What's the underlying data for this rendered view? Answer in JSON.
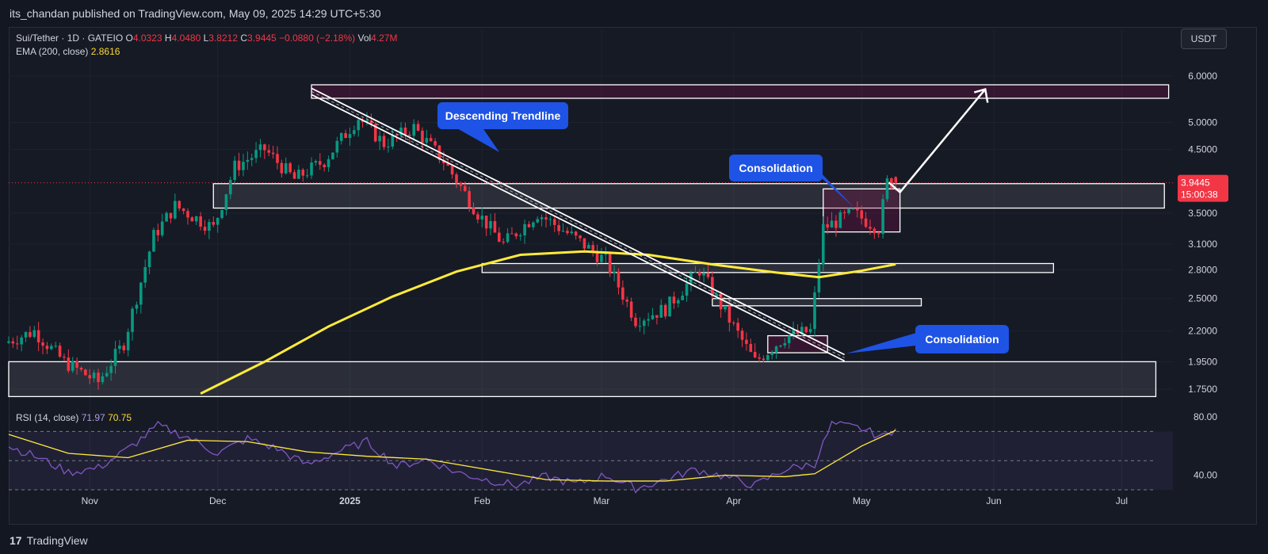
{
  "header": {
    "publisher": "its_chandan published on TradingView.com, May 09, 2025 14:29 UTC+5:30"
  },
  "legend": {
    "symbol": "Sui/Tether · 1D · GATEIO",
    "open_label": "O",
    "open": "4.0323",
    "high_label": "H",
    "high": "4.0480",
    "low_label": "L",
    "low": "3.8212",
    "close_label": "C",
    "close": "3.9445",
    "change": "−0.0880 (−2.18%)",
    "vol_label": "Vol",
    "vol": "4.27M",
    "ema_label": "EMA (200, close)",
    "ema": "2.8616",
    "rsi_label": "RSI (14, close)",
    "rsi": "71.97",
    "rsi_ma": "70.75"
  },
  "currency_button": "USDT",
  "price_tag": {
    "price": "3.9445",
    "countdown": "15:00:38"
  },
  "annotations": {
    "descending": "Descending Trendline",
    "consolidation_top": "Consolidation",
    "consolidation_bottom": "Consolidation"
  },
  "footer": {
    "brand": "TradingView"
  },
  "colors": {
    "up": "#089981",
    "down": "#f23645",
    "ema": "#ffeb3b",
    "rsi": "#7e57c2",
    "rsi_ma": "#ffeb3b",
    "annotation": "#1e53e5"
  },
  "chart_data": {
    "type": "candlestick",
    "y_scale": "log",
    "y_ticks": [
      "6.0000",
      "5.0000",
      "4.5000",
      "3.5000",
      "3.1000",
      "2.8000",
      "2.5000",
      "2.2000",
      "1.9500",
      "1.7500"
    ],
    "y_tick_values": [
      6.0,
      5.0,
      4.5,
      3.5,
      3.1,
      2.8,
      2.5,
      2.2,
      1.95,
      1.75
    ],
    "x_ticks": [
      "Nov",
      "Dec",
      "2025",
      "Feb",
      "Mar",
      "Apr",
      "May",
      "Jun",
      "Jul"
    ],
    "x_tick_dates": [
      "2024-11-01",
      "2024-12-01",
      "2025-01-01",
      "2025-02-01",
      "2025-03-01",
      "2025-04-01",
      "2025-05-01",
      "2025-06-01",
      "2025-07-01"
    ],
    "x_range": [
      "2024-10-13",
      "2025-07-13"
    ],
    "last_candle": {
      "date": "2025-05-09",
      "open": 4.0323,
      "high": 4.048,
      "low": 3.8212,
      "close": 3.9445
    },
    "ema200": [
      [
        "2024-11-27",
        1.72
      ],
      [
        "2024-12-12",
        1.95
      ],
      [
        "2024-12-27",
        2.24
      ],
      [
        "2025-01-11",
        2.52
      ],
      [
        "2025-01-26",
        2.78
      ],
      [
        "2025-02-10",
        2.97
      ],
      [
        "2025-02-25",
        3.01
      ],
      [
        "2025-03-12",
        2.97
      ],
      [
        "2025-03-27",
        2.86
      ],
      [
        "2025-04-11",
        2.77
      ],
      [
        "2025-04-21",
        2.72
      ],
      [
        "2025-05-01",
        2.79
      ],
      [
        "2025-05-09",
        2.8616
      ]
    ],
    "zones": [
      {
        "from": "2024-12-23",
        "to": "2025-07-12",
        "low": 5.5,
        "high": 5.8
      },
      {
        "from": "2024-11-30",
        "to": "2025-07-11",
        "low": 3.57,
        "high": 3.93
      },
      {
        "from": "2025-02-01",
        "to": "2025-06-15",
        "low": 2.77,
        "high": 2.87
      },
      {
        "from": "2025-03-27",
        "to": "2025-05-15",
        "low": 2.43,
        "high": 2.5
      },
      {
        "from": "2024-10-13",
        "to": "2025-07-09",
        "low": 1.7,
        "high": 1.95
      },
      {
        "from": "2025-04-22",
        "to": "2025-05-10",
        "low": 3.25,
        "high": 3.85
      },
      {
        "from": "2025-04-09",
        "to": "2025-04-23",
        "low": 2.02,
        "high": 2.16
      }
    ],
    "trendline": {
      "from": [
        "2024-12-23",
        5.65
      ],
      "to": [
        "2025-04-27",
        1.98
      ]
    },
    "projection_arrow": {
      "from": [
        "2025-05-10",
        3.8
      ],
      "to": [
        "2025-05-30",
        5.7
      ]
    },
    "rsi": {
      "y_ticks": [
        "80.00",
        "40.00"
      ],
      "y_tick_values": [
        80,
        40
      ],
      "levels": [
        70,
        50,
        30
      ],
      "rsi_series": [
        [
          "2024-10-13",
          60
        ],
        [
          "2024-10-20",
          52
        ],
        [
          "2024-10-27",
          42
        ],
        [
          "2024-11-03",
          45
        ],
        [
          "2024-11-10",
          58
        ],
        [
          "2024-11-17",
          74
        ],
        [
          "2024-11-24",
          66
        ],
        [
          "2024-12-01",
          55
        ],
        [
          "2024-12-08",
          65
        ],
        [
          "2024-12-15",
          58
        ],
        [
          "2024-12-22",
          47
        ],
        [
          "2024-12-29",
          56
        ],
        [
          "2025-01-05",
          63
        ],
        [
          "2025-01-12",
          46
        ],
        [
          "2025-01-19",
          51
        ],
        [
          "2025-01-26",
          42
        ],
        [
          "2025-02-02",
          37
        ],
        [
          "2025-02-09",
          33
        ],
        [
          "2025-02-16",
          39
        ],
        [
          "2025-02-23",
          34
        ],
        [
          "2025-03-02",
          40
        ],
        [
          "2025-03-09",
          31
        ],
        [
          "2025-03-16",
          37
        ],
        [
          "2025-03-23",
          44
        ],
        [
          "2025-03-30",
          39
        ],
        [
          "2025-04-06",
          33
        ],
        [
          "2025-04-13",
          44
        ],
        [
          "2025-04-20",
          48
        ],
        [
          "2025-04-24",
          75
        ],
        [
          "2025-05-01",
          72
        ],
        [
          "2025-05-06",
          66
        ],
        [
          "2025-05-09",
          71.97
        ]
      ],
      "rsi_ma_series": [
        [
          "2024-10-13",
          68
        ],
        [
          "2024-10-27",
          55
        ],
        [
          "2024-11-10",
          52
        ],
        [
          "2024-11-24",
          64
        ],
        [
          "2024-12-08",
          63
        ],
        [
          "2024-12-22",
          56
        ],
        [
          "2025-01-05",
          53
        ],
        [
          "2025-01-19",
          51
        ],
        [
          "2025-02-02",
          44
        ],
        [
          "2025-02-16",
          37
        ],
        [
          "2025-03-02",
          36
        ],
        [
          "2025-03-16",
          36
        ],
        [
          "2025-03-30",
          40
        ],
        [
          "2025-04-13",
          39
        ],
        [
          "2025-04-20",
          41
        ],
        [
          "2025-05-01",
          60
        ],
        [
          "2025-05-09",
          70.75
        ]
      ]
    }
  }
}
